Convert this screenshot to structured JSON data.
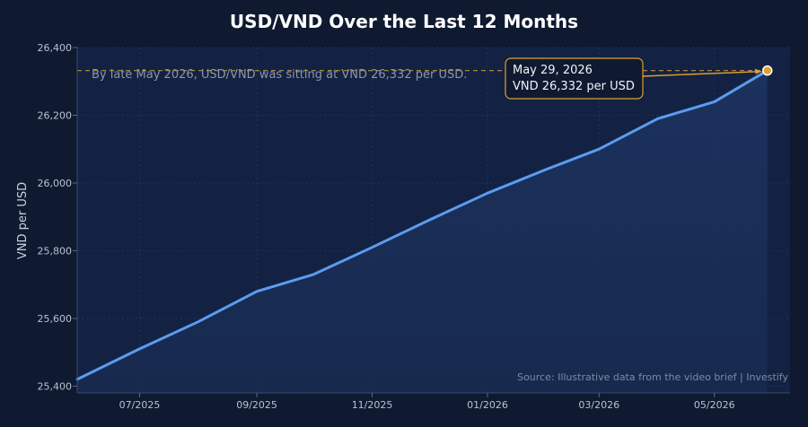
{
  "chart_data": {
    "type": "line",
    "title": "USD/VND Over the Last 12 Months",
    "ylabel": "VND per USD",
    "xlabel": "",
    "ylim": [
      25380,
      26400
    ],
    "yticks": [
      25400,
      25600,
      25800,
      26000,
      26200,
      26400
    ],
    "ytick_labels": [
      "25,400",
      "25,600",
      "25,800",
      "26,000",
      "26,200",
      "26,400"
    ],
    "xlim": [
      "2025-05-29",
      "2026-06-10"
    ],
    "xticks": [
      {
        "date": "2025-07-01",
        "label": "07/2025"
      },
      {
        "date": "2025-09-01",
        "label": "09/2025"
      },
      {
        "date": "2025-11-01",
        "label": "11/2025"
      },
      {
        "date": "2026-01-01",
        "label": "01/2026"
      },
      {
        "date": "2026-03-01",
        "label": "03/2026"
      },
      {
        "date": "2026-05-01",
        "label": "05/2026"
      }
    ],
    "grid": true,
    "series": [
      {
        "color": "#5b9cf0",
        "points": [
          {
            "x": "2025-05-29",
            "y": 25420
          },
          {
            "x": "2025-07-01",
            "y": 25510
          },
          {
            "x": "2025-08-01",
            "y": 25590
          },
          {
            "x": "2025-09-01",
            "y": 25680
          },
          {
            "x": "2025-10-01",
            "y": 25730
          },
          {
            "x": "2025-11-01",
            "y": 25810
          },
          {
            "x": "2025-12-01",
            "y": 25890
          },
          {
            "x": "2026-01-01",
            "y": 25970
          },
          {
            "x": "2026-02-01",
            "y": 26040
          },
          {
            "x": "2026-03-01",
            "y": 26100
          },
          {
            "x": "2026-04-01",
            "y": 26190
          },
          {
            "x": "2026-05-01",
            "y": 26240
          },
          {
            "x": "2026-05-29",
            "y": 26332
          }
        ]
      }
    ],
    "reference_line": {
      "y": 26332,
      "color": "#e0a030"
    },
    "note": "By late May 2026, USD/VND was sitting at VND 26,332 per USD.",
    "callout": {
      "line1": "May 29, 2026",
      "line2": "VND 26,332 per USD",
      "color": "#e0a030"
    },
    "source": "Source: Illustrative data from the video brief | Investify"
  }
}
